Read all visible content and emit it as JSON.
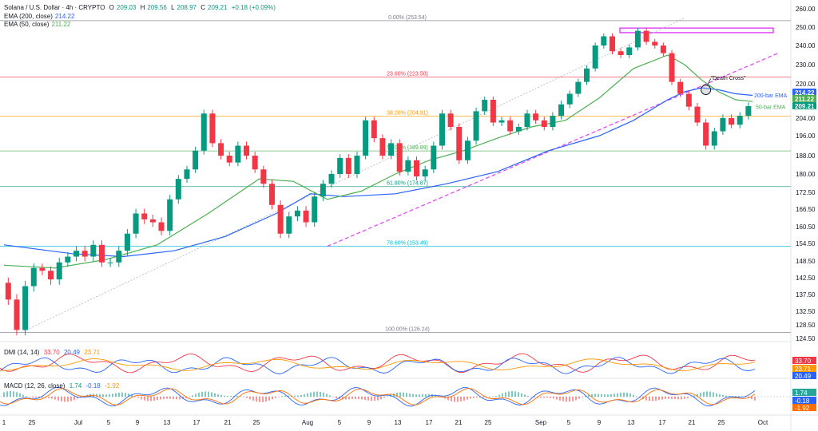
{
  "header": {
    "symbol": "Solana / U.S. Dollar · 4h · CRYPTO",
    "ohlc": [
      {
        "k": "O",
        "v": "209.03"
      },
      {
        "k": "H",
        "v": "209.56"
      },
      {
        "k": "L",
        "v": "208.97"
      },
      {
        "k": "C",
        "v": "209.21"
      }
    ],
    "change": "+0.18 (+0.09%)"
  },
  "indicators": {
    "ema200": {
      "label": "EMA (200, close)",
      "value": "214.22"
    },
    "ema50": {
      "label": "EMA (50, close)",
      "value": "211.22"
    },
    "dmi": {
      "label": "DMI (14, 14)",
      "values": [
        "33.70",
        "20.49",
        "23.71"
      ]
    },
    "macd": {
      "label": "MACD (12, 26, close)",
      "values": [
        "1.74",
        "-0.18",
        "-1.92"
      ]
    }
  },
  "colors": {
    "up": "#089981",
    "down": "#f23645",
    "ema50": "#4caf50",
    "ema200": "#2962ff",
    "trend": "#e040fb",
    "resistance": "#e040fb",
    "fib": "#9e9e9e",
    "macd": "#2962ff",
    "signal": "#ff6d00",
    "dmi_plus": "#2962ff",
    "dmi_minus": "#f23645",
    "adx": "#ff9800"
  },
  "chart_data": {
    "type": "candlestick",
    "y_axis": {
      "ticks": [
        "260.00",
        "250.00",
        "240.00",
        "230.00",
        "220.00",
        "212.00",
        "204.00",
        "196.00",
        "188.00",
        "180.00",
        "172.50",
        "166.50",
        "160.50",
        "154.50",
        "148.50",
        "142.50",
        "137.50",
        "132.50",
        "128.50",
        "124.50"
      ],
      "range": [
        124.5,
        260
      ],
      "last_price_badges": [
        {
          "value": "214.22",
          "color": "#2962ff"
        },
        {
          "value": "211.22",
          "color": "#4caf50"
        },
        {
          "value": "209.21",
          "color": "#089981"
        }
      ]
    },
    "x_axis": {
      "ticks": [
        "1",
        "25",
        "Jul",
        "5",
        "9",
        "13",
        "17",
        "21",
        "25",
        "Aug",
        "5",
        "9",
        "13",
        "17",
        "21",
        "25",
        "Sep",
        "5",
        "9",
        "13",
        "17",
        "21",
        "25",
        "Oct"
      ]
    },
    "fib_levels": [
      {
        "label": "0.00% (253.54)",
        "value": 253.54,
        "color": "#787b86"
      },
      {
        "label": "23.60% (223.50)",
        "value": 223.5,
        "color": "#f23645"
      },
      {
        "label": "38.20% (204.91)",
        "value": 204.91,
        "color": "#ff9800"
      },
      {
        "label": "50.00% (189.89)",
        "value": 189.89,
        "color": "#4caf50"
      },
      {
        "label": "61.80% (174.87)",
        "value": 174.87,
        "color": "#089981"
      },
      {
        "label": "78.60% (153.49)",
        "value": 153.49,
        "color": "#00bcd4"
      },
      {
        "label": "100.00% (126.24)",
        "value": 126.24,
        "color": "#787b86"
      }
    ],
    "annotations": [
      {
        "text": "\"Death Cross\"",
        "color": "#131722"
      },
      {
        "text": "200-bar EMA",
        "color": "#2962ff"
      },
      {
        "text": "50-bar EMA",
        "color": "#4caf50"
      }
    ],
    "price_path": [
      [
        0,
        141
      ],
      [
        1,
        136
      ],
      [
        2,
        127
      ],
      [
        3,
        140
      ],
      [
        4,
        146
      ],
      [
        5,
        145
      ],
      [
        6,
        142
      ],
      [
        7,
        148
      ],
      [
        8,
        150
      ],
      [
        9,
        152
      ],
      [
        10,
        150
      ],
      [
        11,
        154
      ],
      [
        12,
        148
      ],
      [
        13,
        148
      ],
      [
        14,
        152
      ],
      [
        15,
        158
      ],
      [
        16,
        165
      ],
      [
        17,
        163
      ],
      [
        18,
        162
      ],
      [
        19,
        159
      ],
      [
        20,
        170
      ],
      [
        21,
        178
      ],
      [
        22,
        182
      ],
      [
        23,
        190
      ],
      [
        24,
        206
      ],
      [
        25,
        193
      ],
      [
        26,
        188
      ],
      [
        27,
        185
      ],
      [
        28,
        192
      ],
      [
        29,
        188
      ],
      [
        30,
        182
      ],
      [
        31,
        176
      ],
      [
        32,
        168
      ],
      [
        33,
        158
      ],
      [
        34,
        164
      ],
      [
        35,
        166
      ],
      [
        36,
        162
      ],
      [
        37,
        171
      ],
      [
        38,
        176
      ],
      [
        39,
        180
      ],
      [
        40,
        187
      ],
      [
        41,
        180
      ],
      [
        42,
        188
      ],
      [
        43,
        203
      ],
      [
        44,
        195
      ],
      [
        45,
        188
      ],
      [
        46,
        193
      ],
      [
        47,
        181
      ],
      [
        48,
        186
      ],
      [
        49,
        179
      ],
      [
        50,
        182
      ],
      [
        51,
        192
      ],
      [
        52,
        206
      ],
      [
        53,
        200
      ],
      [
        54,
        186
      ],
      [
        55,
        194
      ],
      [
        56,
        207
      ],
      [
        57,
        212
      ],
      [
        58,
        202
      ],
      [
        59,
        203
      ],
      [
        60,
        198
      ],
      [
        61,
        200
      ],
      [
        62,
        206
      ],
      [
        63,
        203
      ],
      [
        64,
        200
      ],
      [
        65,
        205
      ],
      [
        66,
        210
      ],
      [
        67,
        215
      ],
      [
        68,
        221
      ],
      [
        69,
        228
      ],
      [
        70,
        240
      ],
      [
        71,
        245
      ],
      [
        72,
        237
      ],
      [
        73,
        235
      ],
      [
        74,
        239
      ],
      [
        75,
        248
      ],
      [
        76,
        242
      ],
      [
        77,
        240
      ],
      [
        78,
        236
      ],
      [
        79,
        221
      ],
      [
        80,
        215
      ],
      [
        81,
        209
      ],
      [
        82,
        202
      ],
      [
        83,
        192
      ],
      [
        84,
        198
      ],
      [
        85,
        204
      ],
      [
        86,
        201
      ],
      [
        87,
        205
      ],
      [
        88,
        209.21
      ]
    ],
    "ema50": [
      [
        0,
        147
      ],
      [
        6,
        146
      ],
      [
        12,
        149
      ],
      [
        18,
        154
      ],
      [
        24,
        165
      ],
      [
        30,
        178
      ],
      [
        34,
        177
      ],
      [
        38,
        170
      ],
      [
        42,
        173
      ],
      [
        46,
        180
      ],
      [
        50,
        186
      ],
      [
        54,
        190
      ],
      [
        58,
        195
      ],
      [
        62,
        200
      ],
      [
        66,
        203
      ],
      [
        70,
        213
      ],
      [
        74,
        228
      ],
      [
        78,
        235
      ],
      [
        80,
        230
      ],
      [
        82,
        222
      ],
      [
        84,
        216
      ],
      [
        86,
        212
      ],
      [
        88,
        211.22
      ]
    ],
    "ema200": [
      [
        0,
        154
      ],
      [
        8,
        151
      ],
      [
        14,
        150
      ],
      [
        20,
        152
      ],
      [
        26,
        157
      ],
      [
        32,
        165
      ],
      [
        36,
        172
      ],
      [
        40,
        171
      ],
      [
        46,
        172
      ],
      [
        52,
        176
      ],
      [
        58,
        181
      ],
      [
        64,
        190
      ],
      [
        70,
        196
      ],
      [
        74,
        203
      ],
      [
        78,
        212
      ],
      [
        80,
        216
      ],
      [
        82,
        218
      ],
      [
        84,
        217
      ],
      [
        86,
        215
      ],
      [
        88,
        214.22
      ]
    ],
    "trendline_support": {
      "from": [
        38,
        153.49
      ],
      "to": [
        91,
        236
      ]
    },
    "trendline_dotted": {
      "from": [
        2,
        126.24
      ],
      "to": [
        80,
        255
      ]
    },
    "resistance_zone": [
      247,
      249.5
    ],
    "dmi": {
      "names": [
        "DI+",
        "DI-",
        "ADX"
      ],
      "values": [
        "20.49",
        "33.70",
        "23.71"
      ]
    },
    "macd": {
      "names": [
        "MACD",
        "Signal",
        "Histogram"
      ],
      "values": [
        "-0.18",
        "-1.92",
        "1.74"
      ]
    }
  }
}
